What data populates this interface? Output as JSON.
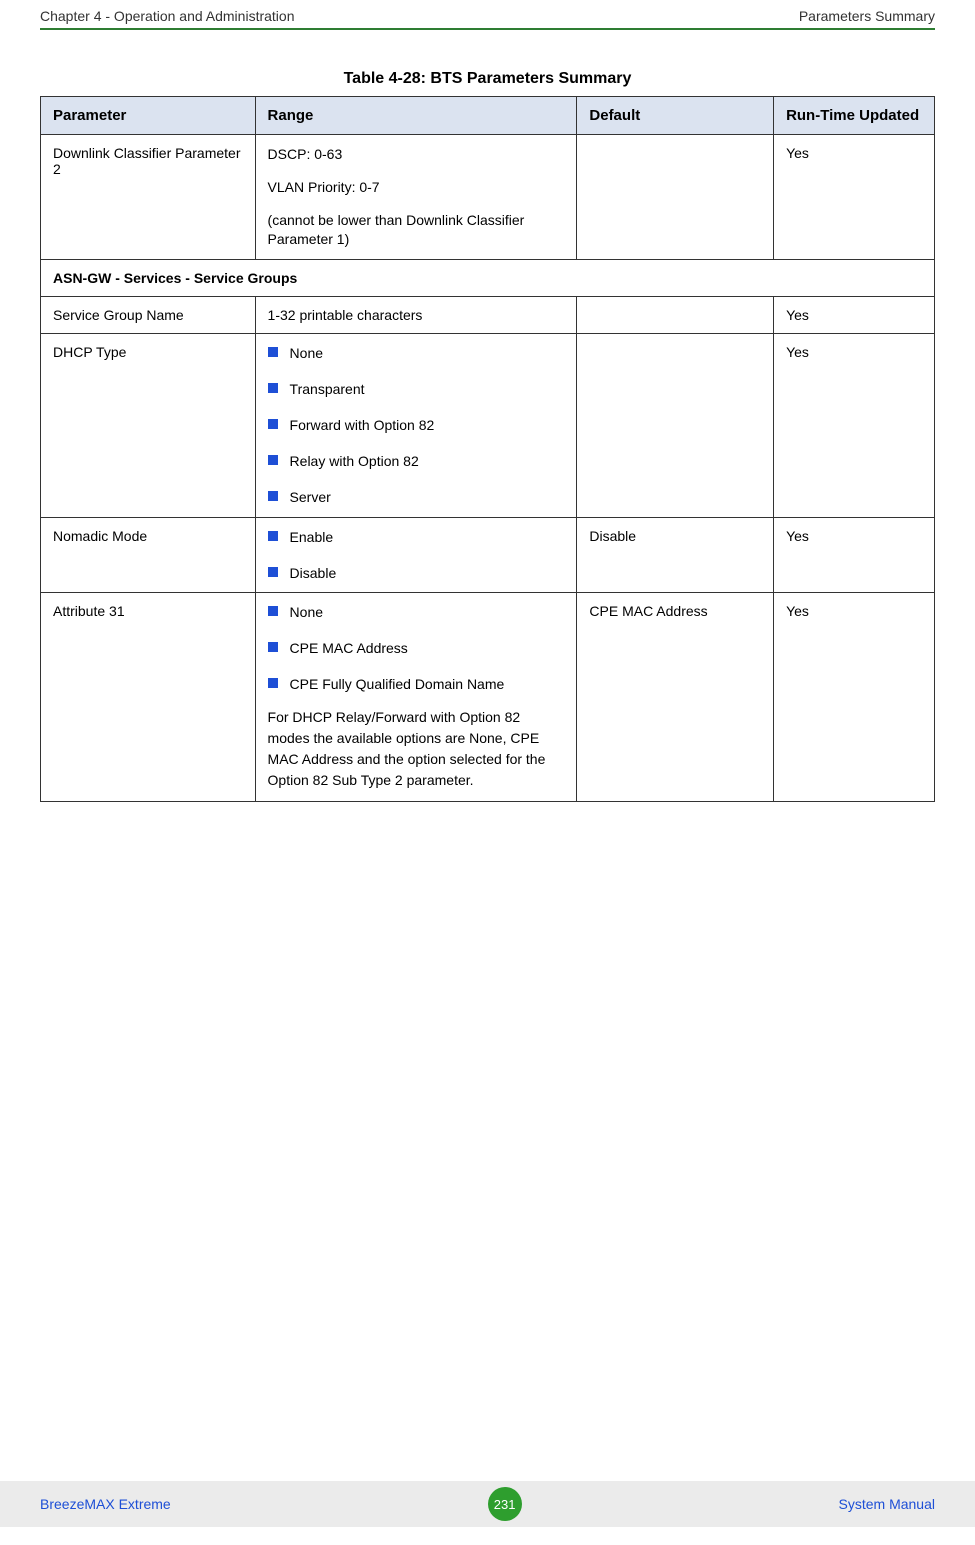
{
  "header": {
    "left": "Chapter 4 - Operation and Administration",
    "right": "Parameters Summary",
    "rule_color": "#2e7d32"
  },
  "table": {
    "caption": "Table 4-28: BTS Parameters Summary",
    "header_bg": "#dbe3f0",
    "border_color": "#333333",
    "bullet_color": "#1e4fd6",
    "columns": {
      "parameter": "Parameter",
      "range": "Range",
      "default": "Default",
      "runtime": "Run-Time Updated"
    },
    "rows": [
      {
        "type": "data",
        "parameter": "Downlink Classifier Parameter 2",
        "range_paragraphs": [
          "DSCP: 0-63",
          "VLAN Priority: 0-7",
          "(cannot be lower than Downlink Classifier Parameter 1)"
        ],
        "default": "",
        "runtime": "Yes"
      },
      {
        "type": "section",
        "label": "ASN-GW - Services - Service Groups"
      },
      {
        "type": "data",
        "parameter": "Service Group Name",
        "range_text": "1-32 printable characters",
        "default": "",
        "runtime": "Yes"
      },
      {
        "type": "data",
        "parameter": "DHCP Type",
        "range_bullets": [
          "None",
          "Transparent",
          "Forward with Option 82",
          "Relay with Option 82",
          "Server"
        ],
        "default": "",
        "runtime": "Yes"
      },
      {
        "type": "data",
        "parameter": "Nomadic Mode",
        "range_bullets": [
          "Enable",
          "Disable"
        ],
        "default": "Disable",
        "runtime": "Yes"
      },
      {
        "type": "data",
        "parameter": "Attribute 31",
        "range_bullets": [
          "None",
          "CPE MAC Address",
          "CPE Fully Qualified Domain Name"
        ],
        "range_note": "For DHCP Relay/Forward with Option 82 modes the available options are None, CPE MAC Address and the option selected for the Option 82 Sub Type 2 parameter.",
        "default": "CPE MAC Address",
        "runtime": "Yes"
      }
    ]
  },
  "footer": {
    "left": "BreezeMAX Extreme",
    "page": "231",
    "right": "System Manual",
    "bg": "#ebebeb",
    "link_color": "#1e4fd6",
    "badge_bg": "#2e9e2e"
  }
}
